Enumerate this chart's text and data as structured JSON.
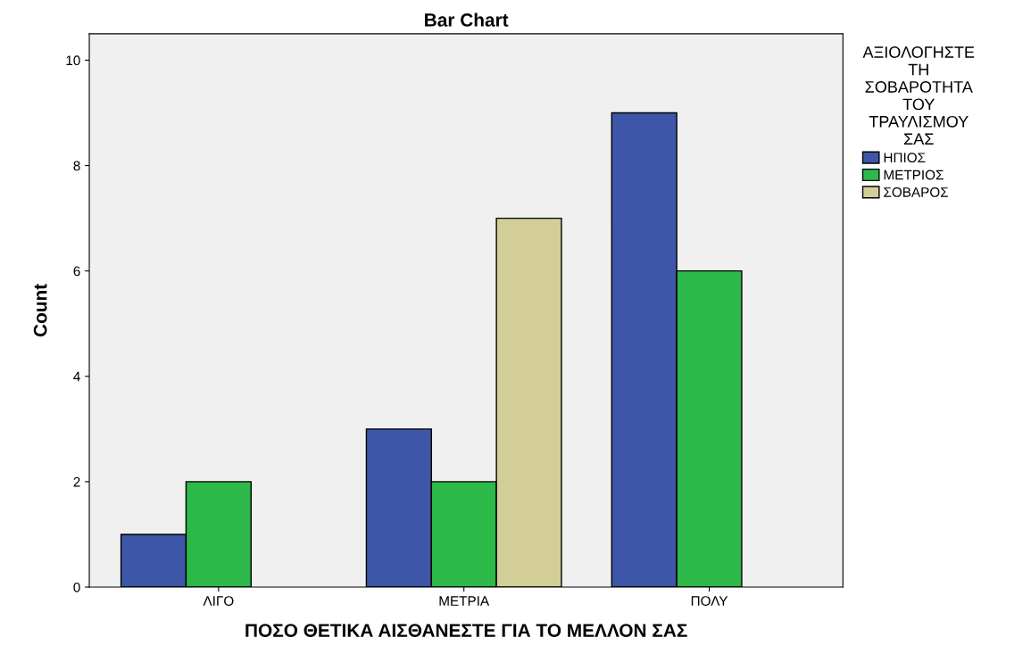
{
  "chart_data": {
    "type": "bar",
    "title": "Bar Chart",
    "xlabel": "ΠΟΣΟ ΘΕΤΙΚΑ ΑΙΣΘΑΝΕΣΤΕ ΓΙΑ ΤΟ ΜΕΛΛΟΝ ΣΑΣ",
    "ylabel": "Count",
    "legend_title": "ΑΞΙΟΛΟΓΗΣΤΕ ΤΗ ΣΟΒΑΡΟΤΗΤΑ ΤΟΥ ΤΡΑΥΛΙΣΜΟΥ ΣΑΣ",
    "categories": [
      "ΛΙΓΟ",
      "ΜΕΤΡΙΑ",
      "ΠΟΛΥ"
    ],
    "series": [
      {
        "name": "ΗΠΙΟΣ",
        "color": "#3d56a8",
        "values": [
          1,
          3,
          9
        ]
      },
      {
        "name": "ΜΕΤΡΙΟΣ",
        "color": "#2db84a",
        "values": [
          2,
          2,
          6
        ]
      },
      {
        "name": "ΣΟΒΑΡΟΣ",
        "color": "#d3cd98",
        "values": [
          null,
          7,
          null
        ]
      }
    ],
    "ylim": [
      0,
      10.5
    ],
    "yticks": [
      0,
      2,
      4,
      6,
      8,
      10
    ],
    "grid": false,
    "legend": "right"
  }
}
